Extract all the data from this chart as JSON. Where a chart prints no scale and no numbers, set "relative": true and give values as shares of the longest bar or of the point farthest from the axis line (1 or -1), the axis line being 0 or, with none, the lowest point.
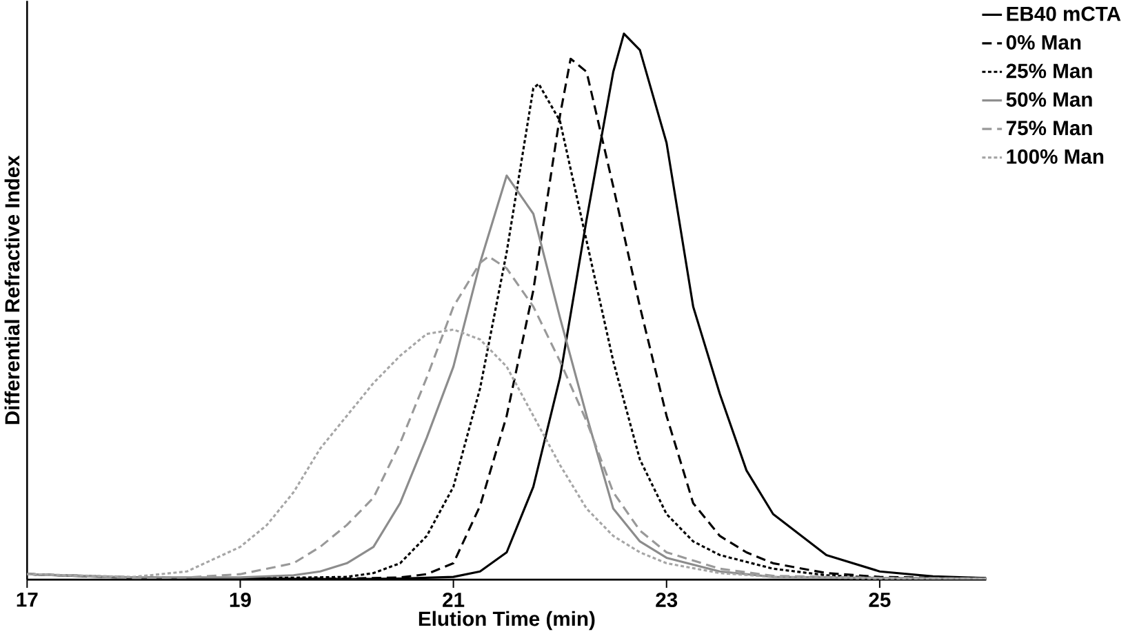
{
  "chart_data": {
    "type": "line",
    "xlabel": "Elution Time (min)",
    "ylabel": "Differential Refractive Index",
    "relative": true,
    "xlim": [
      17,
      26
    ],
    "xticks": [
      17,
      19,
      21,
      23,
      25
    ],
    "grid": false,
    "legend": "top right",
    "marker": "none",
    "series": [
      {
        "name": "EB40 mCTA",
        "color": "#000000",
        "line_style": "solid",
        "x": [
          17,
          18,
          19,
          20,
          20.5,
          21,
          21.25,
          21.5,
          21.75,
          22,
          22.25,
          22.5,
          22.6,
          22.75,
          23,
          23.25,
          23.5,
          23.75,
          24,
          24.5,
          25,
          25.5,
          26
        ],
        "values": [
          0.01,
          0.003,
          0.002,
          0.001,
          0.002,
          0.005,
          0.015,
          0.05,
          0.17,
          0.37,
          0.66,
          0.93,
          1.0,
          0.97,
          0.8,
          0.5,
          0.34,
          0.2,
          0.12,
          0.045,
          0.015,
          0.006,
          0.003
        ]
      },
      {
        "name": "0% Man",
        "color": "#000000",
        "line_style": "dashed",
        "x": [
          17,
          18,
          19,
          20,
          20.5,
          20.75,
          21,
          21.25,
          21.5,
          21.75,
          22,
          22.1,
          22.25,
          22.5,
          22.75,
          23,
          23.25,
          23.5,
          23.75,
          24,
          24.5,
          25,
          26
        ],
        "values": [
          0.01,
          0.004,
          0.002,
          0.002,
          0.004,
          0.01,
          0.03,
          0.135,
          0.3,
          0.53,
          0.85,
          0.954,
          0.93,
          0.72,
          0.5,
          0.3,
          0.14,
          0.08,
          0.05,
          0.03,
          0.012,
          0.005,
          0.002
        ]
      },
      {
        "name": "25% Man",
        "color": "#000000",
        "line_style": "dotted",
        "x": [
          17,
          18,
          19,
          20,
          20.25,
          20.5,
          20.75,
          21,
          21.25,
          21.5,
          21.75,
          21.8,
          22,
          22.25,
          22.5,
          22.75,
          23,
          23.25,
          23.5,
          24,
          24.5,
          25,
          26
        ],
        "values": [
          0.01,
          0.004,
          0.002,
          0.005,
          0.012,
          0.03,
          0.08,
          0.17,
          0.35,
          0.6,
          0.9,
          0.908,
          0.84,
          0.62,
          0.4,
          0.22,
          0.12,
          0.07,
          0.045,
          0.02,
          0.008,
          0.003,
          0.002
        ]
      },
      {
        "name": "50% Man",
        "color": "#8c8c8c",
        "line_style": "solid",
        "x": [
          17,
          18,
          19,
          19.5,
          19.75,
          20,
          20.25,
          20.5,
          20.75,
          21,
          21.25,
          21.5,
          21.75,
          22,
          22.25,
          22.5,
          22.75,
          23,
          23.5,
          24,
          25,
          26
        ],
        "values": [
          0.01,
          0.004,
          0.004,
          0.008,
          0.015,
          0.03,
          0.06,
          0.14,
          0.26,
          0.39,
          0.58,
          0.74,
          0.67,
          0.48,
          0.3,
          0.13,
          0.07,
          0.04,
          0.015,
          0.005,
          0.003,
          0.002
        ]
      },
      {
        "name": "75% Man",
        "color": "#999999",
        "line_style": "dashed",
        "x": [
          17,
          18,
          18.5,
          19,
          19.5,
          19.75,
          20,
          20.25,
          20.5,
          20.75,
          21,
          21.25,
          21.33,
          21.5,
          21.75,
          22,
          22.25,
          22.5,
          22.75,
          23,
          23.5,
          24,
          25,
          26
        ],
        "values": [
          0.01,
          0.003,
          0.004,
          0.01,
          0.03,
          0.06,
          0.1,
          0.15,
          0.25,
          0.37,
          0.5,
          0.58,
          0.592,
          0.57,
          0.5,
          0.4,
          0.29,
          0.16,
          0.09,
          0.05,
          0.02,
          0.007,
          0.003,
          0.002
        ]
      },
      {
        "name": "100% Man",
        "color": "#a6a6a6",
        "line_style": "dotted",
        "x": [
          17,
          18,
          18.5,
          19,
          19.25,
          19.5,
          19.75,
          20,
          20.25,
          20.5,
          20.75,
          21,
          21.25,
          21.5,
          21.75,
          22,
          22.25,
          22.5,
          22.75,
          23,
          23.5,
          24,
          25,
          26
        ],
        "values": [
          0.01,
          0.005,
          0.015,
          0.06,
          0.1,
          0.16,
          0.24,
          0.3,
          0.36,
          0.41,
          0.45,
          0.458,
          0.44,
          0.39,
          0.3,
          0.21,
          0.13,
          0.08,
          0.05,
          0.03,
          0.012,
          0.005,
          0.002,
          0.002
        ]
      }
    ]
  }
}
